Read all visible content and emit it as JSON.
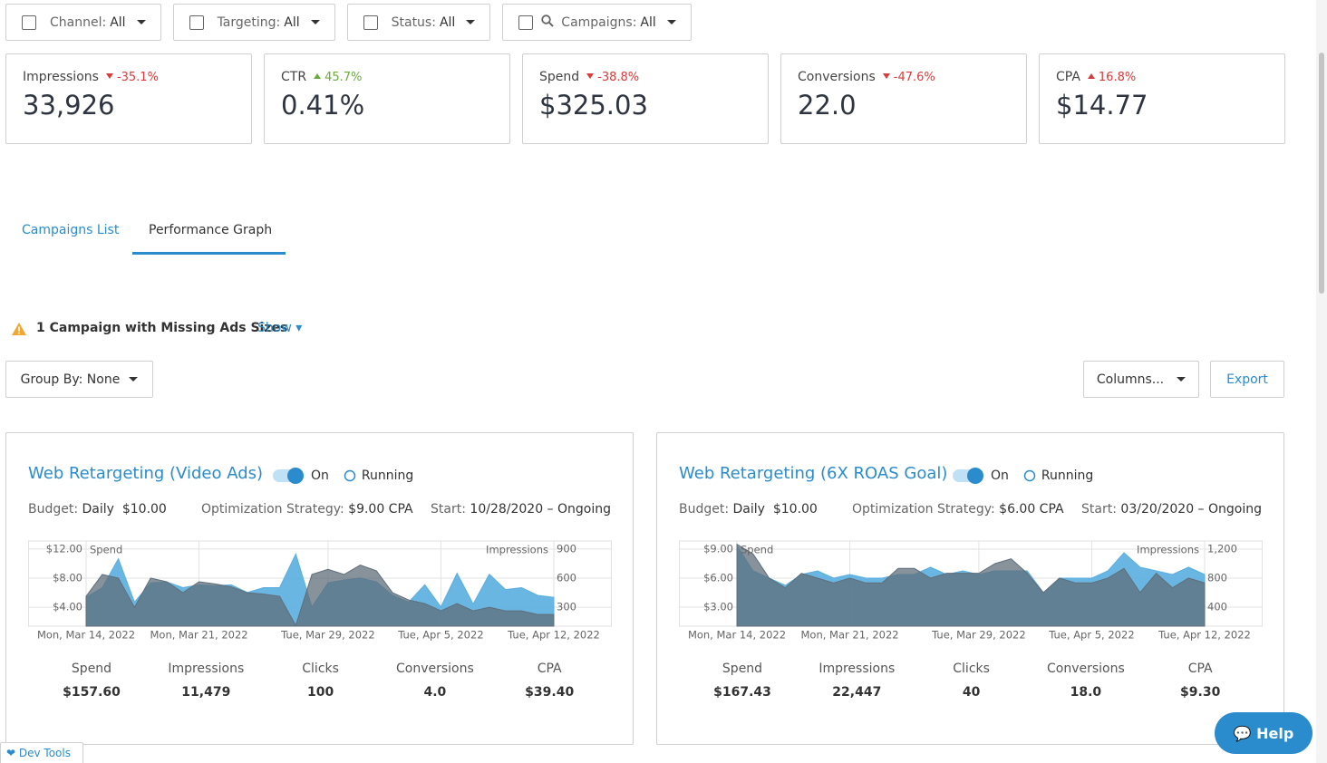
{
  "filters": [
    {
      "label": "Channel:",
      "value": "All"
    },
    {
      "label": "Targeting:",
      "value": "All"
    },
    {
      "label": "Status:",
      "value": "All"
    },
    {
      "label": "Campaigns:",
      "value": "All",
      "search": true
    }
  ],
  "kpis": [
    {
      "label": "Impressions",
      "change": "-35.1%",
      "trend": "down",
      "color": "#d93a3a",
      "value": "33,926"
    },
    {
      "label": "CTR",
      "change": "45.7%",
      "trend": "up",
      "color": "#6aab3c",
      "value": "0.41%"
    },
    {
      "label": "Spend",
      "change": "-38.8%",
      "trend": "down",
      "color": "#d93a3a",
      "value": "$325.03"
    },
    {
      "label": "Conversions",
      "change": "-47.6%",
      "trend": "down",
      "color": "#d93a3a",
      "value": "22.0"
    },
    {
      "label": "CPA",
      "change": "16.8%",
      "trend": "up",
      "color": "#d93a3a",
      "value": "$14.77"
    }
  ],
  "tabs": [
    "Campaigns List",
    "Performance Graph"
  ],
  "active_tab": 1,
  "warning": {
    "text": "1 Campaign with Missing Ads Sizes",
    "action": "Show"
  },
  "group_by": "Group By: None",
  "columns": "Columns...",
  "export": "Export",
  "campaigns": [
    {
      "title": "Web Retargeting (Video Ads)",
      "toggle": "On",
      "status": "Running",
      "budget_label": "Budget",
      "budget": "Daily  $10.00",
      "strategy_label": "Optimization Strategy",
      "strategy": "$9.00 CPA",
      "start_label": "Start",
      "start": "10/28/2020 – Ongoing",
      "chart": {
        "type": "area",
        "categories": [
          "Mon, Mar 14, 2022",
          null,
          null,
          null,
          null,
          null,
          null,
          "Mon, Mar 21, 2022",
          null,
          null,
          null,
          null,
          null,
          null,
          null,
          "Tue, Mar 29, 2022",
          null,
          null,
          null,
          null,
          null,
          null,
          "Tue, Apr 5, 2022",
          null,
          null,
          null,
          null,
          null,
          null,
          "Tue, Apr 12, 2022"
        ],
        "series": [
          {
            "name": "Impressions",
            "color": "#5aaee0",
            "axis": "y2",
            "values": [
              400,
              500,
              800,
              350,
              550,
              560,
              500,
              530,
              520,
              530,
              450,
              500,
              500,
              850,
              300,
              550,
              580,
              600,
              560,
              420,
              350,
              530,
              300,
              650,
              330,
              640,
              480,
              500,
              420,
              400
            ]
          },
          {
            "name": "Spend",
            "color": "#5f6e7a",
            "values": [
              5.5,
              8.5,
              8,
              4,
              8,
              7.5,
              6,
              7.5,
              7.2,
              6.8,
              6,
              5.8,
              5.5,
              1.5,
              8.5,
              9.2,
              8.5,
              9.8,
              9,
              6,
              5,
              4.5,
              3.5,
              4.5,
              3.5,
              4,
              3.5,
              3.5,
              3,
              3
            ]
          }
        ],
        "ylim": [
          1.4,
          13.1
        ],
        "yticks": [
          {
            "value": 4,
            "label": "$4.00"
          },
          {
            "value": 8,
            "label": "$8.00"
          },
          {
            "value": 12,
            "label": "$12.00"
          }
        ],
        "y2lim": [
          100,
          985
        ],
        "y2ticks": [
          300,
          600,
          900
        ],
        "grid": true
      },
      "stats": [
        {
          "label": "Spend",
          "value": "$157.60"
        },
        {
          "label": "Impressions",
          "value": "11,479"
        },
        {
          "label": "Clicks",
          "value": "100"
        },
        {
          "label": "Conversions",
          "value": "4.0"
        },
        {
          "label": "CPA",
          "value": "$39.40"
        }
      ]
    },
    {
      "title": "Web Retargeting (6X ROAS Goal)",
      "toggle": "On",
      "status": "Running",
      "budget_label": "Budget",
      "budget": "Daily  $10.00",
      "strategy_label": "Optimization Strategy",
      "strategy": "$6.00 CPA",
      "start_label": "Start",
      "start": "03/20/2020 – Ongoing",
      "chart": {
        "type": "area",
        "categories": [
          "Mon, Mar 14, 2022",
          null,
          null,
          null,
          null,
          null,
          null,
          "Mon, Mar 21, 2022",
          null,
          null,
          null,
          null,
          null,
          null,
          null,
          "Tue, Mar 29, 2022",
          null,
          null,
          null,
          null,
          null,
          null,
          "Tue, Apr 5, 2022",
          null,
          null,
          null,
          null,
          null,
          null,
          "Tue, Apr 12, 2022"
        ],
        "series": [
          {
            "name": "Impressions",
            "color": "#5aaee0",
            "axis": "y2",
            "values": [
              1250,
              900,
              800,
              700,
              850,
              900,
              800,
              850,
              800,
              800,
              850,
              850,
              950,
              850,
              900,
              850,
              900,
              900,
              900,
              600,
              800,
              800,
              800,
              900,
              1150,
              950,
              900,
              850,
              950,
              850
            ]
          },
          {
            "name": "Spend",
            "color": "#5f6e7a",
            "values": [
              9.5,
              8.5,
              6,
              5,
              6.5,
              6,
              5.5,
              6,
              5.5,
              5.5,
              7,
              7,
              6,
              6.5,
              6.5,
              6.5,
              7.5,
              8,
              6.5,
              4.5,
              6,
              5.5,
              5.5,
              6,
              7,
              4.5,
              6.5,
              5,
              6,
              5.5
            ]
          }
        ],
        "ylim": [
          1.03,
          9.84
        ],
        "yticks": [
          {
            "value": 3,
            "label": "$3.00"
          },
          {
            "value": 6,
            "label": "$6.00"
          },
          {
            "value": 9,
            "label": "$9.00"
          }
        ],
        "y2lim": [
          138,
          1312
        ],
        "y2ticks": [
          400,
          800,
          {
            "value": 1200,
            "label": "1,200"
          }
        ],
        "grid": true
      },
      "stats": [
        {
          "label": "Spend",
          "value": "$167.43"
        },
        {
          "label": "Impressions",
          "value": "22,447"
        },
        {
          "label": "Clicks",
          "value": "40"
        },
        {
          "label": "Conversions",
          "value": "18.0"
        },
        {
          "label": "CPA",
          "value": "$9.30"
        }
      ]
    }
  ],
  "dev_tools": "Dev Tools",
  "help": "Help"
}
